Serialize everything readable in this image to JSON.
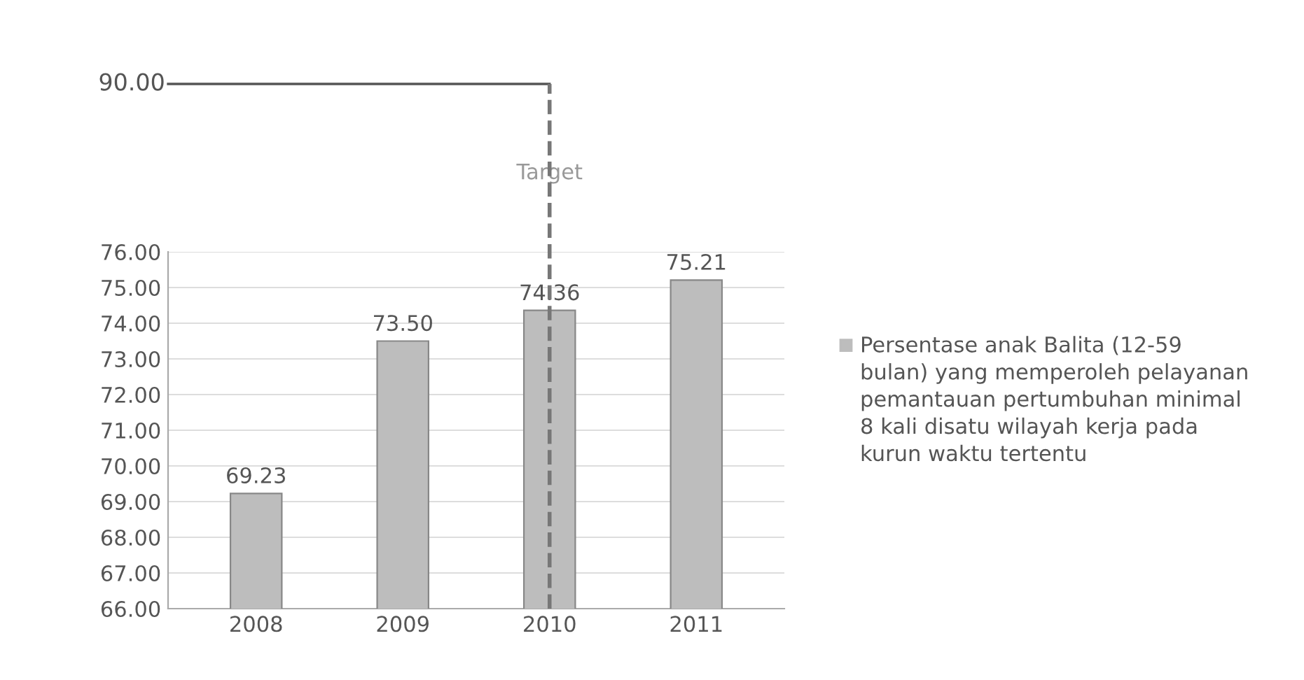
{
  "chart_data": {
    "type": "bar",
    "categories": [
      "2008",
      "2009",
      "2010",
      "2011"
    ],
    "series": [
      {
        "name": "Persentase anak Balita (12-59 bulan) yang memperoleh pelayanan pemantauan pertumbuhan minimal 8 kali disatu wilayah kerja pada kurun waktu tertentu",
        "color": "#bdbdbd",
        "values": [
          69.23,
          73.5,
          74.36,
          75.21
        ]
      }
    ],
    "ylim": [
      66,
      76
    ],
    "yticks": [
      {
        "value": 66,
        "label": "66.00"
      },
      {
        "value": 67,
        "label": "67.00"
      },
      {
        "value": 68,
        "label": "68.00"
      },
      {
        "value": 69,
        "label": "69.00"
      },
      {
        "value": 70,
        "label": "70.00"
      },
      {
        "value": 71,
        "label": "71.00"
      },
      {
        "value": 72,
        "label": "72.00"
      },
      {
        "value": 73,
        "label": "73.00"
      },
      {
        "value": 74,
        "label": "74.00"
      },
      {
        "value": 75,
        "label": "75.00"
      },
      {
        "value": 76,
        "label": "76.00"
      }
    ],
    "value_labels": [
      "69.23",
      "73.50",
      "74.36",
      "75.21"
    ],
    "ref_lines": [
      {
        "axis": "x",
        "value": "2010",
        "label": "Target",
        "color": "#777777",
        "line_style": "dashed"
      }
    ],
    "annotations": [
      "90.00"
    ],
    "grid": "y",
    "legend": "right"
  }
}
